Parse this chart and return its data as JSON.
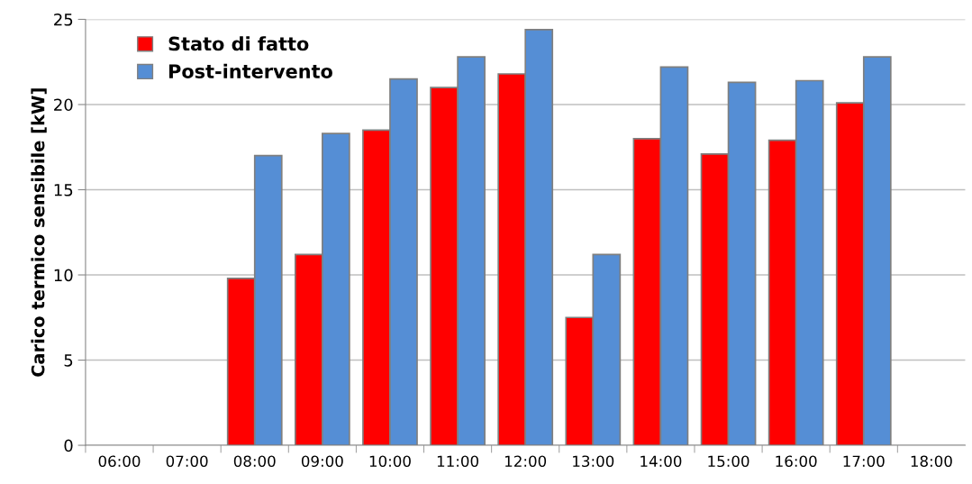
{
  "chart_data": {
    "type": "bar",
    "ylabel": "Carico termico sensibile [kW]",
    "categories": [
      "06:00",
      "07:00",
      "08:00",
      "09:00",
      "10:00",
      "11:00",
      "12:00",
      "13:00",
      "14:00",
      "15:00",
      "16:00",
      "17:00",
      "18:00"
    ],
    "series": [
      {
        "name": "Stato di fatto",
        "color": "#ff0000",
        "values": [
          null,
          null,
          9.8,
          11.2,
          18.5,
          21.0,
          21.8,
          7.5,
          18.0,
          17.1,
          17.9,
          20.1,
          null
        ]
      },
      {
        "name": "Post-intervento",
        "color": "#558ed5",
        "values": [
          null,
          null,
          17.0,
          18.3,
          21.5,
          22.8,
          24.4,
          11.2,
          22.2,
          21.3,
          21.4,
          22.8,
          null
        ]
      }
    ],
    "ylim": [
      0,
      25
    ],
    "yticks": [
      0,
      5,
      10,
      15,
      20,
      25
    ],
    "grid": "y",
    "legend": "top left"
  }
}
